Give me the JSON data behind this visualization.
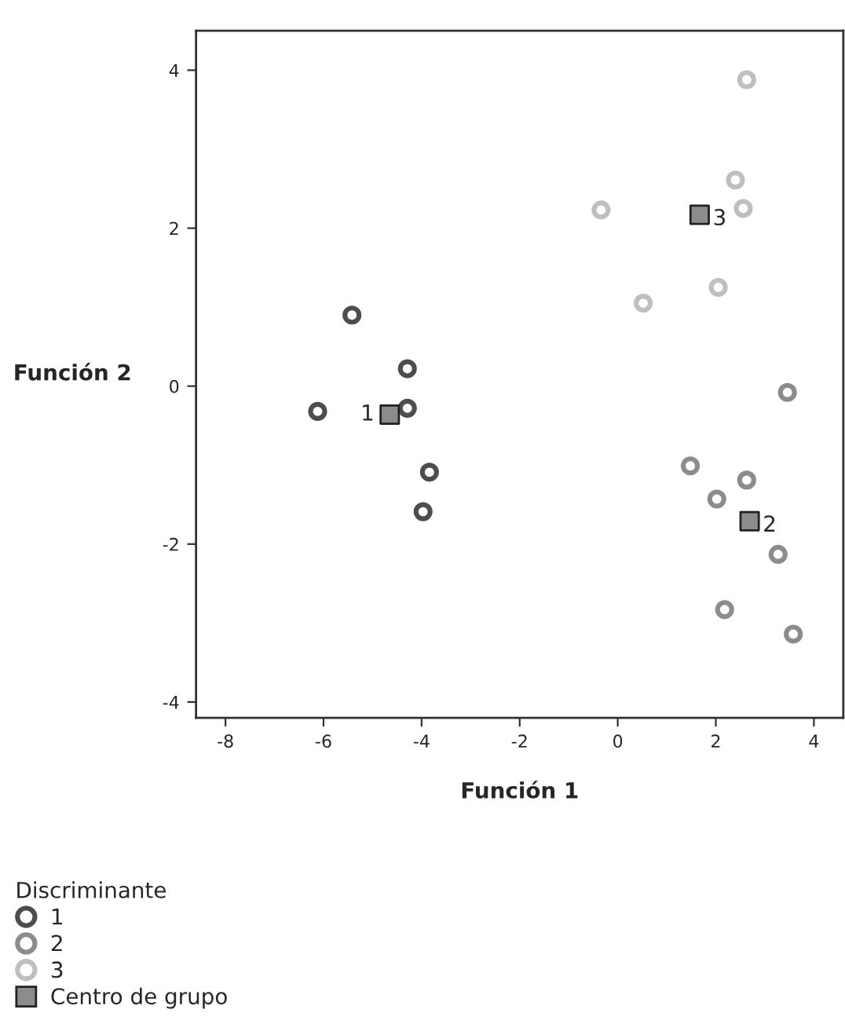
{
  "chart_data": {
    "type": "scatter",
    "xlabel": "Función 1",
    "ylabel": "Función 2",
    "legend_title": "Discriminante",
    "legend": "bottom left",
    "grid": false,
    "xlim": [
      -8.6,
      4.6
    ],
    "ylim": [
      -4.2,
      4.5
    ],
    "xticks": [
      {
        "value": -8,
        "label": "-8"
      },
      {
        "value": -6,
        "label": "-6"
      },
      {
        "value": -4,
        "label": "-4"
      },
      {
        "value": -2,
        "label": "-2"
      },
      0,
      2,
      4
    ],
    "yticks": [
      {
        "value": -4,
        "label": "-4"
      },
      {
        "value": -2,
        "label": "-2"
      },
      0,
      2,
      4
    ],
    "series": [
      {
        "name": "1",
        "color": "#4d4d4d",
        "marker": "circle",
        "x": [
          -6.12,
          -5.42,
          -4.29,
          -4.29,
          -3.84,
          -3.97
        ],
        "values": [
          -0.32,
          0.9,
          0.22,
          -0.28,
          -1.09,
          -1.59
        ]
      },
      {
        "name": "2",
        "color": "#8c8c8c",
        "marker": "circle",
        "x": [
          3.46,
          1.48,
          2.63,
          2.02,
          3.27,
          2.18,
          3.58
        ],
        "values": [
          -0.08,
          -1.01,
          -1.19,
          -1.43,
          -2.13,
          -2.83,
          -3.14
        ]
      },
      {
        "name": "3",
        "color": "#bfbfbf",
        "marker": "circle",
        "x": [
          2.63,
          2.4,
          2.56,
          -0.34,
          0.52,
          2.05
        ],
        "values": [
          3.88,
          2.61,
          2.25,
          2.23,
          1.05,
          1.25
        ]
      },
      {
        "name": "Centro de grupo",
        "color": "#8c8c8c",
        "marker": "square",
        "x": [
          -4.65,
          2.69,
          1.67
        ],
        "values": [
          -0.36,
          -1.71,
          2.17
        ]
      }
    ],
    "annotations": [
      {
        "text": "1",
        "x": -4.65,
        "y": -0.36
      },
      {
        "text": "2",
        "x": 2.69,
        "y": -1.71
      },
      {
        "text": "3",
        "x": 1.67,
        "y": 2.17
      }
    ]
  }
}
